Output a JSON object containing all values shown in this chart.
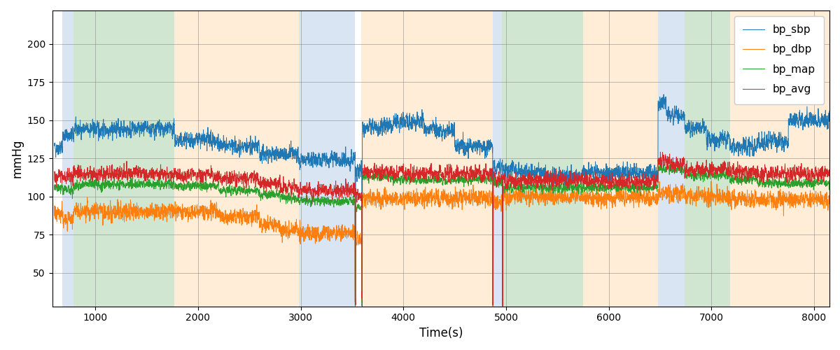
{
  "xlabel": "Time(s)",
  "ylabel": "mmHg",
  "xlim": [
    580,
    8150
  ],
  "ylim": [
    28,
    222
  ],
  "yticks": [
    50,
    75,
    100,
    125,
    150,
    175,
    200
  ],
  "xticks": [
    1000,
    2000,
    3000,
    4000,
    5000,
    6000,
    7000,
    8000
  ],
  "line_colors": {
    "bp_sbp": "#1f77b4",
    "bp_dbp": "#ff7f0e",
    "bp_map": "#2ca02c",
    "bp_avg": "#d62728"
  },
  "bg_bands": [
    {
      "xmin": 680,
      "xmax": 790,
      "color": "#aec6e8",
      "alpha": 0.45
    },
    {
      "xmin": 790,
      "xmax": 1770,
      "color": "#98c89a",
      "alpha": 0.45
    },
    {
      "xmin": 1770,
      "xmax": 2980,
      "color": "#ffd8a8",
      "alpha": 0.45
    },
    {
      "xmin": 2980,
      "xmax": 3530,
      "color": "#aec6e8",
      "alpha": 0.45
    },
    {
      "xmin": 3590,
      "xmax": 4870,
      "color": "#ffd8a8",
      "alpha": 0.45
    },
    {
      "xmin": 4870,
      "xmax": 4960,
      "color": "#aec6e8",
      "alpha": 0.45
    },
    {
      "xmin": 4960,
      "xmax": 5750,
      "color": "#98c89a",
      "alpha": 0.45
    },
    {
      "xmin": 5750,
      "xmax": 6480,
      "color": "#ffd8a8",
      "alpha": 0.45
    },
    {
      "xmin": 6480,
      "xmax": 6740,
      "color": "#aec6e8",
      "alpha": 0.45
    },
    {
      "xmin": 6740,
      "xmax": 7180,
      "color": "#98c89a",
      "alpha": 0.45
    },
    {
      "xmin": 7180,
      "xmax": 8150,
      "color": "#ffd8a8",
      "alpha": 0.45
    }
  ],
  "seed": 42,
  "figsize": [
    12.0,
    5.0
  ],
  "dpi": 100
}
